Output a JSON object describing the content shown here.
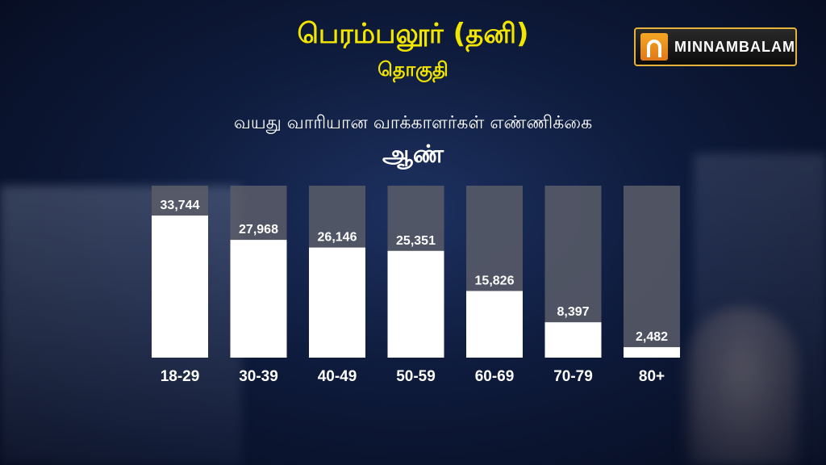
{
  "header": {
    "title": "பெரம்பலூர் (தனி)",
    "subtitle": "தொகுதி"
  },
  "brand": {
    "name": "MINNAMBALAM",
    "accent": "#f4a623"
  },
  "chart_heading": "வயது வாரியான வாக்காளர்கள் எண்ணிக்கை",
  "gender_label": "ஆண்",
  "colors": {
    "title": "#f2e600",
    "bar_fill": "#ffffff",
    "bar_track": "#5a5d68",
    "background": "#0e1b3c"
  },
  "chart_data": {
    "type": "bar",
    "title": "",
    "xlabel": "",
    "ylabel": "",
    "categories": [
      "18-29",
      "30-39",
      "40-49",
      "50-59",
      "60-69",
      "70-79",
      "80+"
    ],
    "values": [
      33744,
      27968,
      26146,
      25351,
      15826,
      8397,
      2482
    ],
    "value_labels": [
      "33,744",
      "27,968",
      "26,146",
      "25,351",
      "15,826",
      "8,397",
      "2,482"
    ],
    "ylim": [
      0,
      36000
    ],
    "grid": false,
    "legend": "none"
  }
}
